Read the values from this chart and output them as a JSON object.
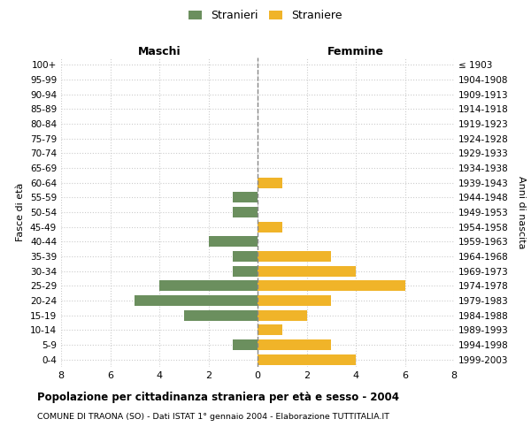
{
  "age_groups": [
    "100+",
    "95-99",
    "90-94",
    "85-89",
    "80-84",
    "75-79",
    "70-74",
    "65-69",
    "60-64",
    "55-59",
    "50-54",
    "45-49",
    "40-44",
    "35-39",
    "30-34",
    "25-29",
    "20-24",
    "15-19",
    "10-14",
    "5-9",
    "0-4"
  ],
  "birth_years": [
    "≤ 1903",
    "1904-1908",
    "1909-1913",
    "1914-1918",
    "1919-1923",
    "1924-1928",
    "1929-1933",
    "1934-1938",
    "1939-1943",
    "1944-1948",
    "1949-1953",
    "1954-1958",
    "1959-1963",
    "1964-1968",
    "1969-1973",
    "1974-1978",
    "1979-1983",
    "1984-1988",
    "1989-1993",
    "1994-1998",
    "1999-2003"
  ],
  "males": [
    0,
    0,
    0,
    0,
    0,
    0,
    0,
    0,
    0,
    1,
    1,
    0,
    2,
    1,
    1,
    4,
    5,
    3,
    0,
    1,
    0
  ],
  "females": [
    0,
    0,
    0,
    0,
    0,
    0,
    0,
    0,
    1,
    0,
    0,
    1,
    0,
    3,
    4,
    6,
    3,
    2,
    1,
    3,
    4
  ],
  "male_color": "#6b8f5e",
  "female_color": "#f0b429",
  "title": "Popolazione per cittadinanza straniera per età e sesso - 2004",
  "subtitle": "COMUNE DI TRAONA (SO) - Dati ISTAT 1° gennaio 2004 - Elaborazione TUTTITALIA.IT",
  "xlabel_left": "Maschi",
  "xlabel_right": "Femmine",
  "ylabel_left": "Fasce di età",
  "ylabel_right": "Anni di nascita",
  "legend_male": "Stranieri",
  "legend_female": "Straniere",
  "xlim": 8,
  "background_color": "#ffffff",
  "grid_color": "#cccccc"
}
